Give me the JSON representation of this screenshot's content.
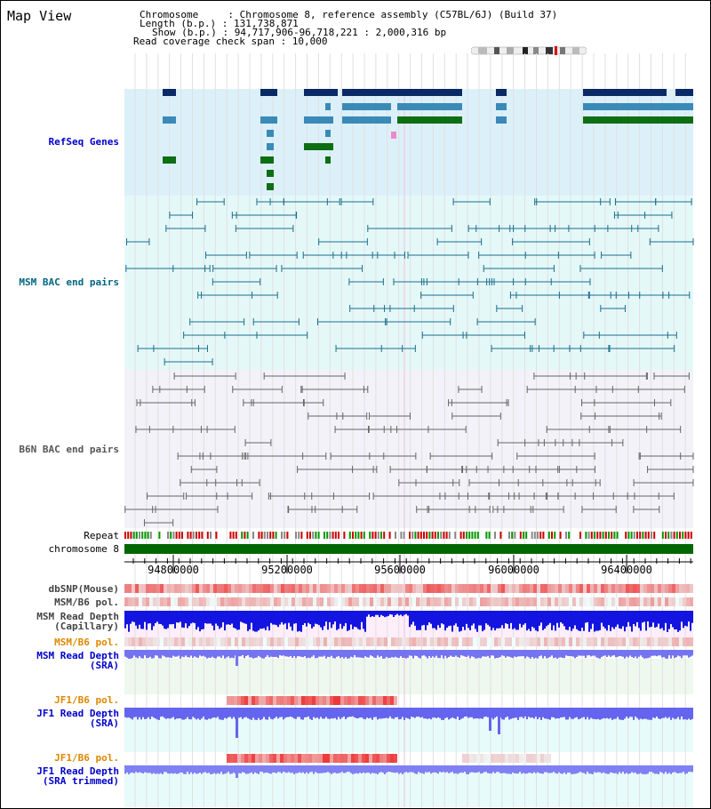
{
  "view": {
    "title": "Map View"
  },
  "info": {
    "chromosome": "Chromosome     : Chromosome 8, reference assembly (C57BL/6J) (Build 37)",
    "length": "Length (b.p.) : 131,738,871",
    "show": "Show (b.p.) : 94,717,906-96,718,221 : 2,000,316 bp",
    "coverage": "Read coverage check span : 10,000"
  },
  "tracks": {
    "refseq": "RefSeq Genes",
    "msm_bac": "MSM BAC end pairs",
    "b6n_bac": "B6N BAC end pairs",
    "repeat": "Repeat",
    "chromosome": "chromosome 8",
    "dbsnp": "dbSNP(Mouse)",
    "msm_pol": "MSM/B6 pol.",
    "msm_depth_cap_1": "MSM Read Depth",
    "msm_depth_cap_2": "(Capillary)",
    "msm_pol_2": "MSM/B6 pol.",
    "msm_depth_sra_1": "MSM Read Depth",
    "msm_depth_sra_2": "(SRA)",
    "jf1_pol": "JF1/B6 pol.",
    "jf1_depth_1": "JF1 Read Depth",
    "jf1_depth_2": "(SRA)",
    "jf1_pol_2": "JF1/B6 pol.",
    "jf1_trim_1": "JF1 Read Depth",
    "jf1_trim_2": "(SRA trimmed)"
  },
  "axis": {
    "ticks": [
      "94800000",
      "95200000",
      "95600000",
      "96000000",
      "96400000"
    ]
  },
  "colors": {
    "refseq_bg": "#dcf0fa",
    "msm_bg": "#e4f8f8",
    "b6n_bg": "#f2f2f8",
    "gene_dark": "#0a2a66",
    "gene_mid": "#3a8ab8",
    "gene_green": "#0e6e14",
    "msm_line": "#1a6e8e",
    "b6n_line": "#666666",
    "chrom_green": "#006600",
    "depth_blue": "#1010e0",
    "depth_light": "#7070f0",
    "pol_red": "#e02020",
    "label_blue": "#0000cc",
    "label_teal": "#006680",
    "label_gray": "#555555",
    "label_orange": "#dd8800"
  }
}
